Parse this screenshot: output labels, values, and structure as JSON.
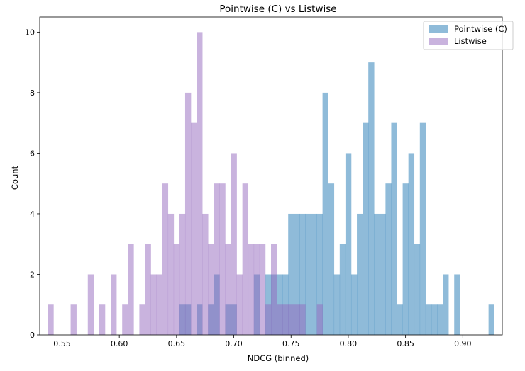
{
  "chart_data": {
    "type": "bar",
    "title": "Pointwise (C) vs Listwise",
    "xlabel": "NDCG (binned)",
    "ylabel": "Count",
    "xlim": [
      0.5305,
      0.9345
    ],
    "ylim": [
      0,
      10.5
    ],
    "x_ticks": [
      "0.55",
      "0.60",
      "0.65",
      "0.70",
      "0.75",
      "0.80",
      "0.85",
      "0.90"
    ],
    "y_ticks": [
      "0",
      "2",
      "4",
      "6",
      "8",
      "10"
    ],
    "bin_width": 0.005,
    "grid": false,
    "legend_position": "top-right",
    "colors": {
      "Pointwise (C)": "#1f77b4",
      "Listwise": "#9467bd"
    },
    "bar_opacity": 0.5,
    "series": [
      {
        "name": "Pointwise (C)",
        "x": [
          0.655,
          0.66,
          0.67,
          0.68,
          0.685,
          0.695,
          0.7,
          0.72,
          0.73,
          0.735,
          0.74,
          0.745,
          0.75,
          0.755,
          0.76,
          0.765,
          0.77,
          0.775,
          0.78,
          0.785,
          0.79,
          0.795,
          0.8,
          0.805,
          0.81,
          0.815,
          0.82,
          0.825,
          0.83,
          0.835,
          0.84,
          0.845,
          0.85,
          0.855,
          0.86,
          0.865,
          0.87,
          0.875,
          0.88,
          0.885,
          0.89,
          0.895,
          0.9,
          0.925
        ],
        "values": [
          1,
          1,
          1,
          1,
          2,
          1,
          1,
          2,
          2,
          2,
          2,
          2,
          4,
          4,
          4,
          4,
          4,
          4,
          8,
          5,
          2,
          3,
          6,
          2,
          4,
          7,
          9,
          4,
          4,
          5,
          7,
          1,
          5,
          6,
          3,
          7,
          1,
          1,
          1,
          2,
          0,
          2,
          0,
          1
        ]
      },
      {
        "name": "Listwise",
        "x": [
          0.54,
          0.56,
          0.575,
          0.585,
          0.595,
          0.605,
          0.61,
          0.62,
          0.625,
          0.63,
          0.635,
          0.64,
          0.645,
          0.65,
          0.655,
          0.66,
          0.665,
          0.67,
          0.675,
          0.68,
          0.685,
          0.69,
          0.695,
          0.7,
          0.705,
          0.71,
          0.715,
          0.72,
          0.725,
          0.73,
          0.735,
          0.74,
          0.745,
          0.75,
          0.755,
          0.76,
          0.765,
          0.77,
          0.775,
          0.78
        ],
        "values": [
          1,
          1,
          2,
          1,
          2,
          1,
          3,
          1,
          3,
          2,
          2,
          5,
          4,
          3,
          4,
          8,
          7,
          10,
          4,
          3,
          5,
          5,
          3,
          6,
          2,
          5,
          3,
          3,
          3,
          1,
          3,
          1,
          1,
          1,
          1,
          1,
          0,
          0,
          1,
          0
        ]
      }
    ]
  }
}
